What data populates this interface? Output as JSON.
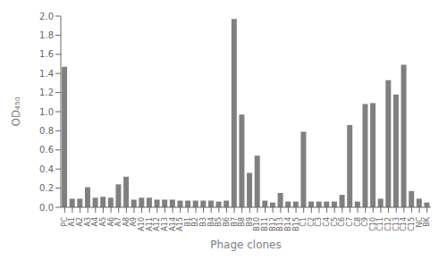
{
  "chart_data": {
    "type": "bar",
    "xlabel": "Phage clones",
    "ylabel": "OD₄₅₀",
    "categories": [
      "PC",
      "A1",
      "A2",
      "A3",
      "A4",
      "A5",
      "A6",
      "A7",
      "A8",
      "A9",
      "A10",
      "A11",
      "A12",
      "A13",
      "A14",
      "A15",
      "B1",
      "B2",
      "B3",
      "B4",
      "B5",
      "B6",
      "B7",
      "B8",
      "B9",
      "B10",
      "B11",
      "B12",
      "B13",
      "B14",
      "B15",
      "C1",
      "C2",
      "C3",
      "C4",
      "C5",
      "C6",
      "C7",
      "C8",
      "C9",
      "C10",
      "C11",
      "C12",
      "C13",
      "C14",
      "C15",
      "NC",
      "BK"
    ],
    "values": [
      1.47,
      0.09,
      0.09,
      0.21,
      0.1,
      0.11,
      0.1,
      0.24,
      0.32,
      0.08,
      0.1,
      0.1,
      0.08,
      0.08,
      0.08,
      0.07,
      0.07,
      0.07,
      0.07,
      0.07,
      0.06,
      0.07,
      1.97,
      0.97,
      0.36,
      0.54,
      0.07,
      0.05,
      0.15,
      0.06,
      0.06,
      0.79,
      0.06,
      0.06,
      0.06,
      0.06,
      0.13,
      0.86,
      0.06,
      1.08,
      1.09,
      0.09,
      1.33,
      1.18,
      1.49,
      0.17,
      0.09,
      0.05
    ],
    "color": "#808080",
    "ylim": [
      0,
      2.0
    ],
    "yticks": [
      {
        "value": 0,
        "label": "0.0"
      },
      0.2,
      0.4,
      0.6,
      0.8,
      {
        "value": 1,
        "label": "1.0"
      },
      1.2,
      1.4,
      1.6,
      1.8,
      {
        "value": 2,
        "label": "2.0"
      }
    ],
    "grid": false
  }
}
